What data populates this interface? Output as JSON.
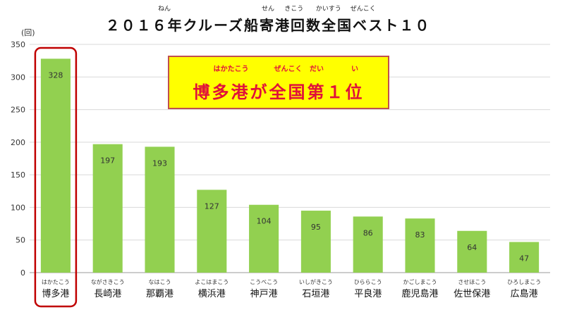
{
  "chart_data": {
    "type": "bar",
    "title": "２０１６年クルーズ船寄港回数全国ベスト１０",
    "title_ruby": [
      {
        "text": "ねん",
        "anchor": 4
      },
      {
        "text": "せん",
        "anchor": 10
      },
      {
        "text": "きこう",
        "anchor": 11.5
      },
      {
        "text": "かいすう",
        "anchor": 13.5
      },
      {
        "text": "ぜんこく",
        "anchor": 15.5
      }
    ],
    "ylabel": "(回)",
    "ylim": [
      0,
      350
    ],
    "yticks": [
      0,
      50,
      100,
      150,
      200,
      250,
      300,
      350
    ],
    "categories": [
      "博多港",
      "長崎港",
      "那覇港",
      "横浜港",
      "神戸港",
      "石垣港",
      "平良港",
      "鹿児島港",
      "佐世保港",
      "広島港"
    ],
    "category_ruby": [
      "はかたこう",
      "ながさきこう",
      "なはこう",
      "よこはまこう",
      "こうべこう",
      "いしがきこう",
      "ひららこう",
      "かごしまこう",
      "させほこう",
      "ひろしまこう"
    ],
    "values": [
      328,
      197,
      193,
      127,
      104,
      95,
      86,
      83,
      64,
      47
    ],
    "bar_color": "#92d050",
    "highlight_index": 0,
    "highlight_color": "#c00000",
    "grid": true
  },
  "callout": {
    "text": "博多港が全国第１位",
    "ruby": [
      {
        "text": "はかたこう",
        "anchor": 1.5
      },
      {
        "text": "ぜんこく",
        "anchor": 4.5
      },
      {
        "text": "だい",
        "anchor": 6
      },
      {
        "text": "い",
        "anchor": 8
      }
    ],
    "background": "#ffff00",
    "border": "#c0504d",
    "text_color": "#e0103a"
  }
}
